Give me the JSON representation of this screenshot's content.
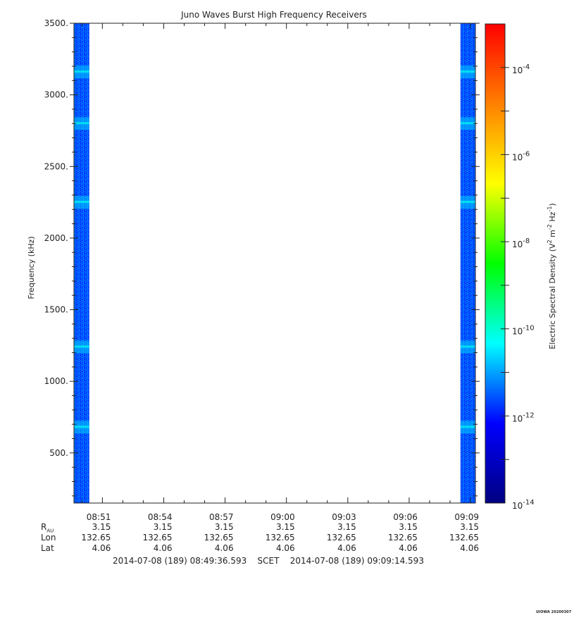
{
  "chart_data": {
    "type": "heatmap",
    "title": "Juno Waves Burst High Frequency Receivers",
    "ylabel": "Frequency (kHz)",
    "ylim": [
      150,
      3500
    ],
    "yticks": [
      "3500.",
      "3000.",
      "2500.",
      "2000.",
      "1500.",
      "1000.",
      "500."
    ],
    "ytick_values": [
      3500,
      3000,
      2500,
      2000,
      1500,
      1000,
      500
    ],
    "x_start": "08:49:36.593",
    "x_end": "09:09:14.593",
    "xticks": [
      "08:51",
      "08:54",
      "08:57",
      "09:00",
      "09:03",
      "09:06",
      "09:09"
    ],
    "xtick_minutes": [
      1.39,
      4.39,
      7.39,
      10.39,
      13.39,
      16.39,
      19.39
    ],
    "x_range_minutes": [
      0,
      19.63
    ],
    "data_segments_minutes": [
      [
        0,
        0.75
      ],
      [
        18.9,
        19.63
      ]
    ],
    "typical_log10_value": -11.6,
    "enhanced_bands_khz": [
      680,
      1240,
      2250,
      2800,
      3160
    ],
    "colorbar": {
      "label": "Electric Spectral Density (V2 m-2 Hz-1)",
      "log10_range": [
        -14,
        -3
      ],
      "ticks_log10": [
        -4,
        -6,
        -8,
        -10,
        -12,
        -14
      ],
      "tick_labels": [
        "10",
        "10",
        "10",
        "10",
        "10",
        "10"
      ],
      "tick_exponents": [
        "-4",
        "-6",
        "-8",
        "-10",
        "-12",
        "-14"
      ],
      "colormap": [
        "#000080",
        "#0000ff",
        "#00ffff",
        "#00ff00",
        "#ffff00",
        "#ff8000",
        "#ff0000"
      ]
    }
  },
  "ephemeris": {
    "rows": [
      {
        "label": "R",
        "sub": "AU",
        "values": [
          "3.15",
          "3.15",
          "3.15",
          "3.15",
          "3.15",
          "3.15",
          "3.15"
        ]
      },
      {
        "label": "Lon",
        "values": [
          "132.65",
          "132.65",
          "132.65",
          "132.65",
          "132.65",
          "132.65",
          "132.65"
        ]
      },
      {
        "label": "Lat",
        "values": [
          "4.06",
          "4.06",
          "4.06",
          "4.06",
          "4.06",
          "4.06",
          "4.06"
        ]
      }
    ]
  },
  "time_range": {
    "start": "2014-07-08 (189) 08:49:36.593",
    "scet": "SCET",
    "end": "2014-07-08 (189) 09:09:14.593"
  },
  "footnote": "UIOWA 20200307"
}
